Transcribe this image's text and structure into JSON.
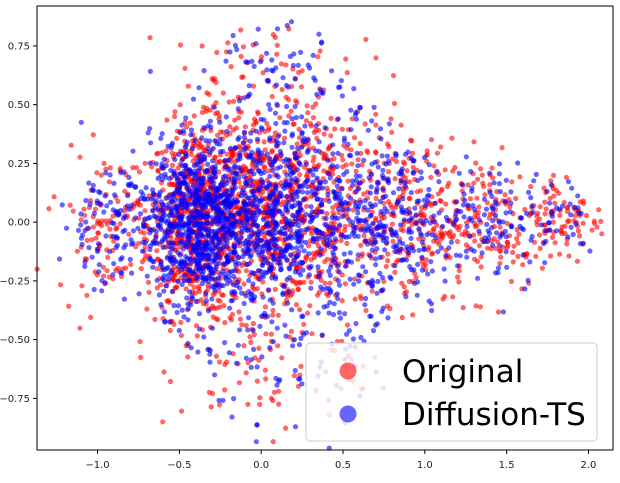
{
  "chart_data": {
    "type": "scatter",
    "title": "",
    "xlabel": "",
    "ylabel": "",
    "xlim": [
      -1.37,
      2.15
    ],
    "ylim": [
      -0.97,
      0.92
    ],
    "xticks": [
      -1.0,
      -0.5,
      0.0,
      0.5,
      1.0,
      1.5,
      2.0
    ],
    "xtick_labels": [
      "−1.0",
      "−0.5",
      "0.0",
      "0.5",
      "1.0",
      "1.5",
      "2.0"
    ],
    "yticks": [
      -0.75,
      -0.5,
      -0.25,
      0.0,
      0.25,
      0.5,
      0.75
    ],
    "ytick_labels": [
      "−0.75",
      "−0.50",
      "−0.25",
      "0.00",
      "0.25",
      "0.50",
      "0.75"
    ],
    "grid": false,
    "legend_position": "lower-right",
    "series": [
      {
        "name": "Original",
        "color": "#ff0000",
        "clusters": [
          {
            "cx": -0.4,
            "cy": 0.0,
            "sx": 0.15,
            "sy": 0.2,
            "n": 600
          },
          {
            "cx": 0.0,
            "cy": 0.05,
            "sx": 0.2,
            "sy": 0.22,
            "n": 550
          },
          {
            "cx": 0.45,
            "cy": 0.05,
            "sx": 0.22,
            "sy": 0.25,
            "n": 300
          },
          {
            "cx": 0.9,
            "cy": 0.0,
            "sx": 0.2,
            "sy": 0.17,
            "n": 200
          },
          {
            "cx": 1.4,
            "cy": 0.0,
            "sx": 0.17,
            "sy": 0.15,
            "n": 130
          },
          {
            "cx": 1.85,
            "cy": 0.02,
            "sx": 0.13,
            "sy": 0.1,
            "n": 90
          },
          {
            "cx": -0.95,
            "cy": 0.0,
            "sx": 0.15,
            "sy": 0.15,
            "n": 110
          },
          {
            "cx": 0.0,
            "cy": 0.6,
            "sx": 0.28,
            "sy": 0.12,
            "n": 60
          },
          {
            "cx": 0.0,
            "cy": -0.62,
            "sx": 0.3,
            "sy": 0.14,
            "n": 70
          }
        ]
      },
      {
        "name": "Diffusion-TS",
        "color": "#0000ff",
        "clusters": [
          {
            "cx": -0.4,
            "cy": 0.0,
            "sx": 0.14,
            "sy": 0.18,
            "n": 700
          },
          {
            "cx": 0.0,
            "cy": 0.02,
            "sx": 0.2,
            "sy": 0.2,
            "n": 550
          },
          {
            "cx": 0.45,
            "cy": 0.0,
            "sx": 0.22,
            "sy": 0.22,
            "n": 320
          },
          {
            "cx": 0.9,
            "cy": 0.0,
            "sx": 0.2,
            "sy": 0.15,
            "n": 180
          },
          {
            "cx": 1.45,
            "cy": 0.0,
            "sx": 0.15,
            "sy": 0.13,
            "n": 90
          },
          {
            "cx": 1.85,
            "cy": 0.05,
            "sx": 0.1,
            "sy": 0.08,
            "n": 30
          },
          {
            "cx": -0.9,
            "cy": 0.0,
            "sx": 0.16,
            "sy": 0.14,
            "n": 120
          },
          {
            "cx": 0.05,
            "cy": 0.6,
            "sx": 0.25,
            "sy": 0.12,
            "n": 60
          },
          {
            "cx": 0.1,
            "cy": -0.6,
            "sx": 0.3,
            "sy": 0.14,
            "n": 60
          }
        ]
      }
    ]
  }
}
